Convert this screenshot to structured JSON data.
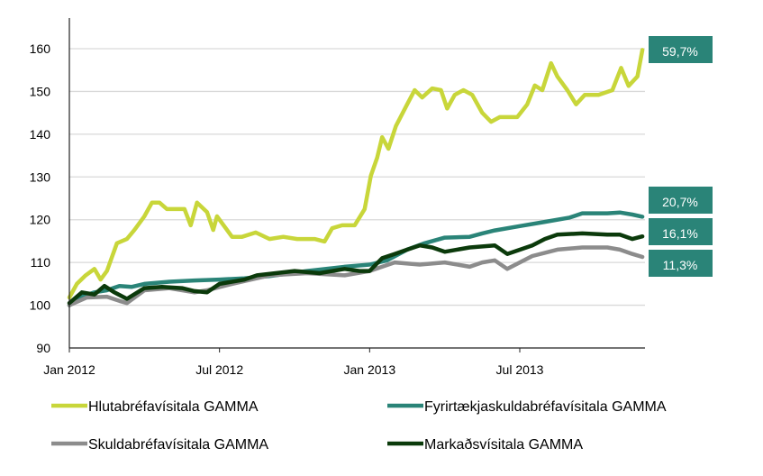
{
  "chart_data": {
    "type": "line",
    "title": "",
    "xlabel": "",
    "ylabel": "",
    "ylim": [
      90,
      160
    ],
    "yticks": [
      90,
      100,
      110,
      120,
      130,
      140,
      150,
      160
    ],
    "x_unit": "months since Jan 2012",
    "xlim": [
      0,
      23
    ],
    "xticks": [
      {
        "m": 0,
        "label": "Jan 2012"
      },
      {
        "m": 6,
        "label": "Jul 2012"
      },
      {
        "m": 12,
        "label": "Jan 2013"
      },
      {
        "m": 18,
        "label": "Jul 2013"
      }
    ],
    "grid": true,
    "legend_position": "bottom",
    "series": [
      {
        "name": "Hlutabréfavísitala GAMMA",
        "color": "#c8d63a",
        "end_label": "59,7%",
        "x": [
          0,
          0.3,
          0.65,
          1,
          1.25,
          1.5,
          1.9,
          2.3,
          2.6,
          3,
          3.3,
          3.6,
          3.9,
          4.25,
          4.6,
          4.85,
          5.1,
          5.5,
          5.75,
          5.9,
          6.5,
          6.9,
          7.45,
          8,
          8.55,
          9.1,
          9.8,
          10.2,
          10.5,
          10.9,
          11.4,
          11.8,
          12.05,
          12.3,
          12.5,
          12.75,
          13.05,
          13.5,
          13.8,
          14.1,
          14.5,
          14.85,
          15.1,
          15.4,
          15.75,
          16.1,
          16.5,
          16.85,
          17.2,
          17.55,
          17.9,
          18.3,
          18.6,
          18.9,
          19.25,
          19.5,
          19.9,
          20.25,
          20.6,
          21.15,
          21.7,
          22.05,
          22.35,
          22.7,
          22.9
        ],
        "values": [
          101.8,
          105,
          107,
          108.5,
          106,
          108,
          114.5,
          115.5,
          117.6,
          120.8,
          124,
          124,
          122.5,
          122.5,
          122.5,
          118.7,
          124,
          121.8,
          117.6,
          120.8,
          116,
          116,
          117,
          115.5,
          116,
          115.5,
          115.5,
          114.9,
          118,
          118.7,
          118.7,
          122.5,
          130.3,
          134.5,
          139.3,
          136.6,
          141.9,
          147,
          150.3,
          148.6,
          150.7,
          150.3,
          146,
          149.2,
          150.3,
          149.2,
          145,
          142.9,
          144,
          144,
          144,
          147,
          151.4,
          150.3,
          156.6,
          153.5,
          150.3,
          147,
          149.2,
          149.2,
          150.3,
          155.5,
          151.3,
          153.5,
          159.7
        ]
      },
      {
        "name": "Fyrirtækjaskuldabréfavísitala GAMMA",
        "color": "#2a8478",
        "end_label": "20,7%",
        "x": [
          0,
          0.5,
          1,
          1.5,
          2,
          2.5,
          3,
          4,
          5,
          6,
          7,
          8,
          9.5,
          11,
          12,
          12.7,
          13.5,
          14.2,
          15,
          16,
          16.5,
          17,
          18,
          19,
          20,
          20.5,
          21.5,
          22,
          22.5,
          22.9
        ],
        "values": [
          100,
          102,
          103,
          103.5,
          104.5,
          104.3,
          105,
          105.5,
          105.8,
          106,
          106.3,
          106.8,
          108,
          109,
          109.5,
          110.5,
          113,
          114.5,
          115.8,
          116,
          116.8,
          117.5,
          118.5,
          119.5,
          120.5,
          121.5,
          121.5,
          121.7,
          121.2,
          120.7
        ]
      },
      {
        "name": "Skuldabréfavísitala GAMMA",
        "color": "#8c8c8c",
        "end_label": "11,3%",
        "x": [
          0,
          0.7,
          1.5,
          2,
          2.3,
          3,
          4,
          5,
          5.5,
          6.5,
          8,
          9.5,
          11,
          12,
          13,
          14,
          15,
          16,
          16.5,
          17,
          17.5,
          18.5,
          19.5,
          20.5,
          21.5,
          22,
          22.5,
          22.9
        ],
        "values": [
          100,
          101.8,
          102,
          101,
          100.5,
          103.5,
          104,
          103,
          103.5,
          105,
          107,
          107.5,
          107,
          108,
          110,
          109.5,
          110,
          109,
          110,
          110.5,
          108.5,
          111.5,
          113,
          113.5,
          113.5,
          113,
          112,
          111.3
        ]
      },
      {
        "name": "Markaðsvísitala GAMMA",
        "color": "#0b3a0b",
        "end_label": "16,1%",
        "x": [
          0,
          0.5,
          1,
          1.4,
          1.8,
          2.3,
          3,
          3.7,
          4.5,
          5,
          5.5,
          6,
          7,
          7.5,
          9,
          10,
          11,
          11.6,
          12,
          12.5,
          13,
          13.5,
          14,
          14.5,
          15,
          16,
          17,
          17.5,
          18.5,
          19,
          19.5,
          20.5,
          21.5,
          22,
          22.5,
          22.9
        ],
        "values": [
          100.5,
          103,
          102.5,
          104.5,
          103,
          101.5,
          104,
          104.3,
          104,
          103.3,
          103,
          105,
          106,
          107,
          108,
          107.5,
          108.5,
          108,
          108,
          111,
          112,
          113,
          114,
          113.5,
          112.5,
          113.5,
          114,
          112,
          114,
          115.5,
          116.5,
          116.8,
          116.5,
          116.5,
          115.5,
          116.1
        ]
      }
    ]
  }
}
